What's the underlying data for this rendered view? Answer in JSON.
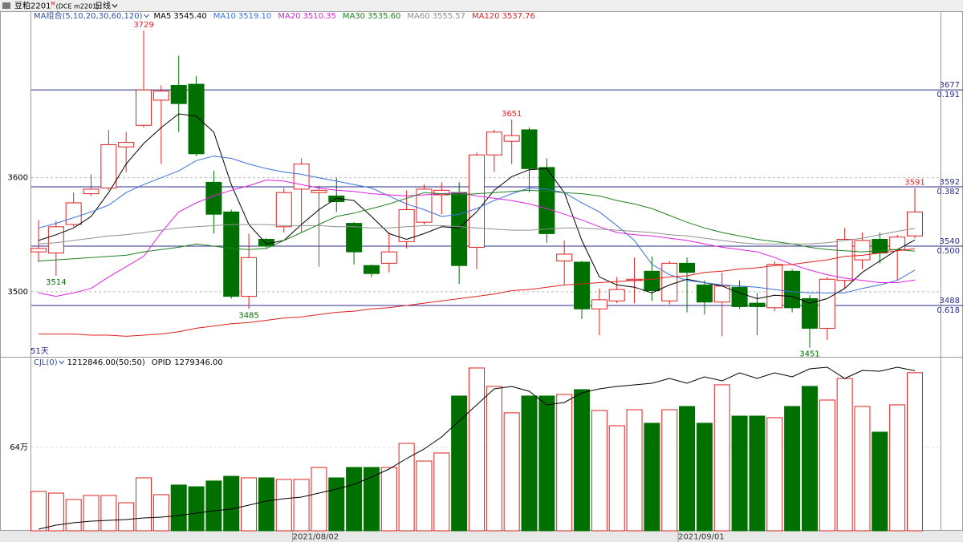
{
  "window": {
    "title": "豆粕2201",
    "title_sup": "M",
    "code": "(DCE m2201)",
    "period": "日线"
  },
  "chart_data": [
    {
      "type": "candlestick",
      "ma_group": "MA组合(5,10,20,30,60,120)",
      "count_label": "51天",
      "up_color": "#e02020",
      "down_color": "#007000",
      "ylim": [
        3443,
        3746
      ],
      "yticks": [
        3500,
        3600
      ],
      "grid": true,
      "open": [
        3535,
        3534,
        3559,
        3586,
        3591,
        3627,
        3646,
        3668,
        3681,
        3682,
        3596,
        3570,
        3496,
        3546,
        3557,
        3590,
        3587,
        3584,
        3560,
        3523,
        3525,
        3544,
        3561,
        3585,
        3587,
        3539,
        3620,
        3632,
        3642,
        3609,
        3527,
        3526,
        3485,
        3492,
        3510,
        3518,
        3492,
        3525,
        3506,
        3491,
        3504,
        3490,
        3486,
        3518,
        3494,
        3468,
        3510,
        3528,
        3546,
        3537,
        3549
      ],
      "high": [
        3563,
        3562,
        3587,
        3603,
        3642,
        3640,
        3729,
        3681,
        3707,
        3689,
        3606,
        3572,
        3551,
        3547,
        3591,
        3617,
        3593,
        3600,
        3561,
        3524,
        3552,
        3589,
        3594,
        3596,
        3596,
        3622,
        3642,
        3651,
        3644,
        3617,
        3545,
        3527,
        3503,
        3513,
        3530,
        3531,
        3527,
        3530,
        3510,
        3517,
        3510,
        3499,
        3527,
        3520,
        3497,
        3513,
        3556,
        3552,
        3552,
        3550,
        3591
      ],
      "low": [
        3526,
        3514,
        3557,
        3584,
        3589,
        3605,
        3644,
        3612,
        3640,
        3619,
        3551,
        3494,
        3485,
        3538,
        3552,
        3552,
        3522,
        3570,
        3524,
        3513,
        3517,
        3538,
        3559,
        3568,
        3507,
        3520,
        3605,
        3612,
        3587,
        3543,
        3506,
        3476,
        3462,
        3490,
        3490,
        3492,
        3489,
        3482,
        3480,
        3461,
        3485,
        3462,
        3483,
        3482,
        3451,
        3458,
        3503,
        3520,
        3525,
        3510,
        3547
      ],
      "close": [
        3538,
        3557,
        3578,
        3590,
        3629,
        3631,
        3677,
        3676,
        3665,
        3621,
        3568,
        3496,
        3530,
        3540,
        3587,
        3612,
        3589,
        3579,
        3535,
        3516,
        3535,
        3572,
        3590,
        3589,
        3523,
        3620,
        3640,
        3637,
        3608,
        3551,
        3533,
        3485,
        3493,
        3502,
        3511,
        3501,
        3525,
        3517,
        3491,
        3505,
        3487,
        3487,
        3524,
        3486,
        3468,
        3511,
        3546,
        3545,
        3534,
        3548,
        3570
      ],
      "marked_highs": [
        6,
        27,
        50
      ],
      "marked_lows": [
        1,
        12,
        44
      ],
      "ma": [
        {
          "name": "MA5",
          "color": "#000000",
          "last_label": "3545.40",
          "values": [
            3545,
            3550,
            3556,
            3566,
            3587,
            3612,
            3630,
            3644,
            3656,
            3654,
            3640,
            3594,
            3559,
            3542,
            3545,
            3559,
            3572,
            3582,
            3580,
            3566,
            3551,
            3546,
            3551,
            3557,
            3556,
            3570,
            3589,
            3601,
            3607,
            3608,
            3587,
            3545,
            3513,
            3506,
            3504,
            3499,
            3506,
            3511,
            3508,
            3505,
            3499,
            3494,
            3497,
            3496,
            3490,
            3494,
            3503,
            3517,
            3527,
            3537,
            3545.4
          ]
        },
        {
          "name": "MA10",
          "color": "#3a6fd8",
          "last_label": "3519.10",
          "values": [
            3556,
            3560,
            3565,
            3570,
            3576,
            3587,
            3594,
            3600,
            3606,
            3615,
            3619,
            3617,
            3612,
            3608,
            3605,
            3603,
            3600,
            3597,
            3594,
            3591,
            3584,
            3577,
            3572,
            3566,
            3568,
            3573,
            3580,
            3586,
            3591,
            3590,
            3587,
            3578,
            3570,
            3558,
            3545,
            3524,
            3515,
            3510,
            3508,
            3506,
            3505,
            3504,
            3502,
            3500,
            3499,
            3499,
            3499,
            3503,
            3506,
            3510,
            3519.1
          ]
        },
        {
          "name": "MA20",
          "color": "#e020e0",
          "last_label": "3510.35",
          "values": [
            3499,
            3496,
            3499,
            3503,
            3513,
            3522,
            3531,
            3552,
            3570,
            3578,
            3584,
            3589,
            3593,
            3598,
            3597,
            3594,
            3591,
            3589,
            3588,
            3586,
            3585,
            3584,
            3585,
            3586,
            3587,
            3584,
            3582,
            3580,
            3577,
            3573,
            3568,
            3563,
            3557,
            3552,
            3550,
            3549,
            3547,
            3545,
            3542,
            3539,
            3537,
            3535,
            3530,
            3524,
            3519,
            3515,
            3512,
            3510,
            3508,
            3508,
            3510.35
          ]
        },
        {
          "name": "MA30",
          "color": "#208020",
          "last_label": "3535.60",
          "values": [
            3527,
            3528,
            3529,
            3530,
            3531,
            3532,
            3535,
            3537,
            3539,
            3542,
            3540,
            3538,
            3537,
            3538,
            3545,
            3552,
            3559,
            3566,
            3569,
            3573,
            3577,
            3582,
            3587,
            3586,
            3585,
            3586,
            3587,
            3588,
            3589,
            3588,
            3587,
            3586,
            3584,
            3580,
            3577,
            3573,
            3567,
            3561,
            3556,
            3552,
            3549,
            3546,
            3544,
            3542,
            3539,
            3537,
            3536,
            3535,
            3536,
            3537,
            3535.6
          ]
        },
        {
          "name": "MA60",
          "color": "#909090",
          "last_label": "3555.57",
          "values": [
            3542,
            3543,
            3545,
            3547,
            3549,
            3550,
            3552,
            3554,
            3556,
            3557,
            3558,
            3559,
            3559,
            3559,
            3558,
            3558,
            3558,
            3557,
            3557,
            3556,
            3556,
            3557,
            3558,
            3558,
            3557,
            3556,
            3555,
            3554,
            3554,
            3555,
            3556,
            3556,
            3555,
            3554,
            3553,
            3552,
            3550,
            3549,
            3547,
            3545,
            3543,
            3542,
            3542,
            3542,
            3542,
            3543,
            3545,
            3547,
            3550,
            3553,
            3555.57
          ]
        },
        {
          "name": "MA120",
          "color": "#e02020",
          "last_label": "3537.76",
          "values": [
            3463,
            3463,
            3463,
            3462,
            3462,
            3461,
            3462,
            3463,
            3465,
            3468,
            3470,
            3472,
            3473,
            3475,
            3477,
            3478,
            3480,
            3482,
            3483,
            3485,
            3486,
            3488,
            3490,
            3492,
            3494,
            3496,
            3498,
            3501,
            3502,
            3504,
            3506,
            3507,
            3508,
            3509,
            3510,
            3511,
            3513,
            3514,
            3517,
            3518,
            3520,
            3521,
            3523,
            3524,
            3526,
            3528,
            3531,
            3532,
            3534,
            3536,
            3537.76
          ]
        }
      ],
      "levels_color": "#2b2b8c",
      "levels": [
        {
          "value": 3677,
          "ratio": "0.191"
        },
        {
          "value": 3592,
          "ratio": "0.382"
        },
        {
          "value": 3540,
          "ratio": "0.500"
        },
        {
          "value": 3488,
          "ratio": "0.618"
        }
      ]
    },
    {
      "type": "bar",
      "categories": [
        null,
        null,
        null,
        null,
        null,
        null,
        null,
        null,
        null,
        null,
        null,
        null,
        null,
        null,
        null,
        "2021/08/02",
        null,
        null,
        null,
        null,
        null,
        null,
        null,
        null,
        null,
        null,
        null,
        null,
        null,
        null,
        null,
        null,
        null,
        null,
        null,
        null,
        null,
        "2021/09/01",
        null,
        null,
        null,
        null,
        null,
        null,
        null,
        null,
        null,
        null,
        null,
        null,
        null
      ],
      "ylim": [
        0,
        1335000
      ],
      "yticks": [
        {
          "value": 640000,
          "label": "64万"
        }
      ],
      "series": [
        {
          "name": "CJL(0)",
          "last_label": "1212846.00(50:50)",
          "values": [
            302000,
            289000,
            240000,
            271000,
            271000,
            215000,
            406000,
            277000,
            351000,
            338000,
            382000,
            418000,
            406000,
            406000,
            394000,
            394000,
            486000,
            406000,
            486000,
            486000,
            486000,
            671000,
            535000,
            597000,
            1034000,
            1249000,
            1108000,
            905000,
            1034000,
            1034000,
            1046000,
            1083000,
            923000,
            806000,
            929000,
            825000,
            929000,
            954000,
            825000,
            1120000,
            880000,
            880000,
            868000,
            954000,
            1108000,
            1003000,
            1169000,
            954000,
            757000,
            966000,
            1212846
          ]
        },
        {
          "name": "OPID",
          "last_label": "1279346.00",
          "axis": "y2",
          "color": "#000000",
          "values": [
            705800,
            720300,
            729000,
            734800,
            737700,
            740600,
            746400,
            749400,
            755200,
            763900,
            772600,
            778400,
            792900,
            807400,
            816100,
            821900,
            836400,
            850900,
            868000,
            894500,
            923500,
            961300,
            996100,
            1039700,
            1097700,
            1155800,
            1213800,
            1222500,
            1205100,
            1155800,
            1164500,
            1199300,
            1213800,
            1222500,
            1228300,
            1234200,
            1251600,
            1234200,
            1257400,
            1242900,
            1271900,
            1251600,
            1271900,
            1257400,
            1286400,
            1292200,
            1251600,
            1280600,
            1277700,
            1292200,
            1279346
          ]
        }
      ],
      "y2lim": [
        700000,
        1330000
      ]
    }
  ]
}
